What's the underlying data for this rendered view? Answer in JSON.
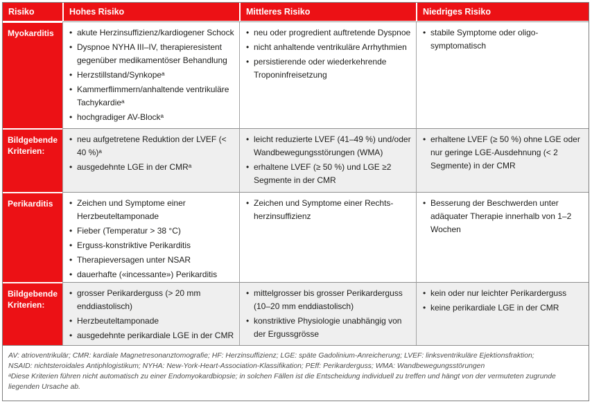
{
  "colors": {
    "accent_red": "#ec1115",
    "alt_row_gray": "#efefef",
    "grid_line": "#a3a3a3",
    "text": "#1d1d1b"
  },
  "table": {
    "header": [
      "Risiko",
      "Hohes Risiko",
      "Mittleres Risiko",
      "Niedriges Risiko"
    ],
    "rows": [
      {
        "label": "Myokarditis",
        "high": [
          "akute Herzinsuffizienz/kardiogener Schock",
          "Dyspnoe NYHA III–IV, therapieresistent gegenüber medikamentöser Behandlung",
          "Herzstillstand/Synkopeᵃ",
          "Kammerflimmern/anhaltende ventrikuläre Tachykardieᵃ",
          "hochgradiger AV-Blockᵃ"
        ],
        "mid": [
          "neu oder progredient auftretende Dyspnoe",
          "nicht anhaltende ventrikuläre Arrhythmien",
          "persistierende oder wiederkehrende Troponinfreisetzung"
        ],
        "low": [
          "stabile Symptome oder oligo-symptomatisch"
        ]
      },
      {
        "label": "Bildgebende Kriterien:",
        "high": [
          "neu aufgetretene Reduktion der LVEF (< 40 %)ᵃ",
          "ausgedehnte LGE in der CMRᵃ"
        ],
        "mid": [
          "leicht reduzierte LVEF (41–49 %) und/oder Wandbewegungsstörungen (WMA)",
          "erhaltene LVEF (≥ 50 %) und LGE ≥2 Segmente in der CMR"
        ],
        "low": [
          "erhaltene LVEF (≥ 50 %) ohne LGE oder nur geringe LGE-Ausdehnung (< 2 Segmente) in der CMR"
        ]
      },
      {
        "label": "Perikarditis",
        "high": [
          "Zeichen und Symptome einer Herzbeuteltamponade",
          "Fieber (Temperatur > 38 °C)",
          "Erguss-konstriktive Perikarditis",
          "Therapieversagen unter NSAR",
          "dauerhafte («incessante») Perikarditis"
        ],
        "mid": [
          "Zeichen und Symptome einer Rechts-herzinsuffizienz"
        ],
        "low": [
          "Besserung der Beschwerden unter adäquater Therapie innerhalb von 1–2 Wochen"
        ]
      },
      {
        "label": "Bildgebende Kriterien:",
        "high": [
          "grosser Perikarderguss (> 20 mm enddiastolisch)",
          "Herzbeuteltamponade",
          "ausgedehnte perikardiale LGE in der CMR"
        ],
        "mid": [
          "mittelgrosser bis grosser Perikarderguss (10–20 mm enddiastolisch)",
          "konstriktive Physiologie unabhängig von der Ergussgrösse"
        ],
        "low": [
          "kein oder nur leichter Perikarderguss",
          "keine perikardiale LGE in der CMR"
        ]
      }
    ]
  },
  "footer": {
    "lines": [
      "AV: atrioventrikulär; CMR: kardiale Magnetresonanztomografie; HF: Herzinsuffizienz; LGE: späte Gadolinium-Anreicherung; LVEF: linksventrikuläre Ejektionsfraktion;",
      "NSAID: nichtsteroidales Antiphlogistikum; NYHA: New-York-Heart-Association-Klassifikation; PEff: Perikarderguss; WMA: Wandbewegungsstörungen",
      "ᵃDiese Kriterien führen nicht automatisch zu einer Endomyokardbiopsie; in solchen Fällen ist die Entscheidung individuell zu treffen und hängt von der vermuteten zugrunde",
      "liegenden Ursache ab."
    ]
  }
}
